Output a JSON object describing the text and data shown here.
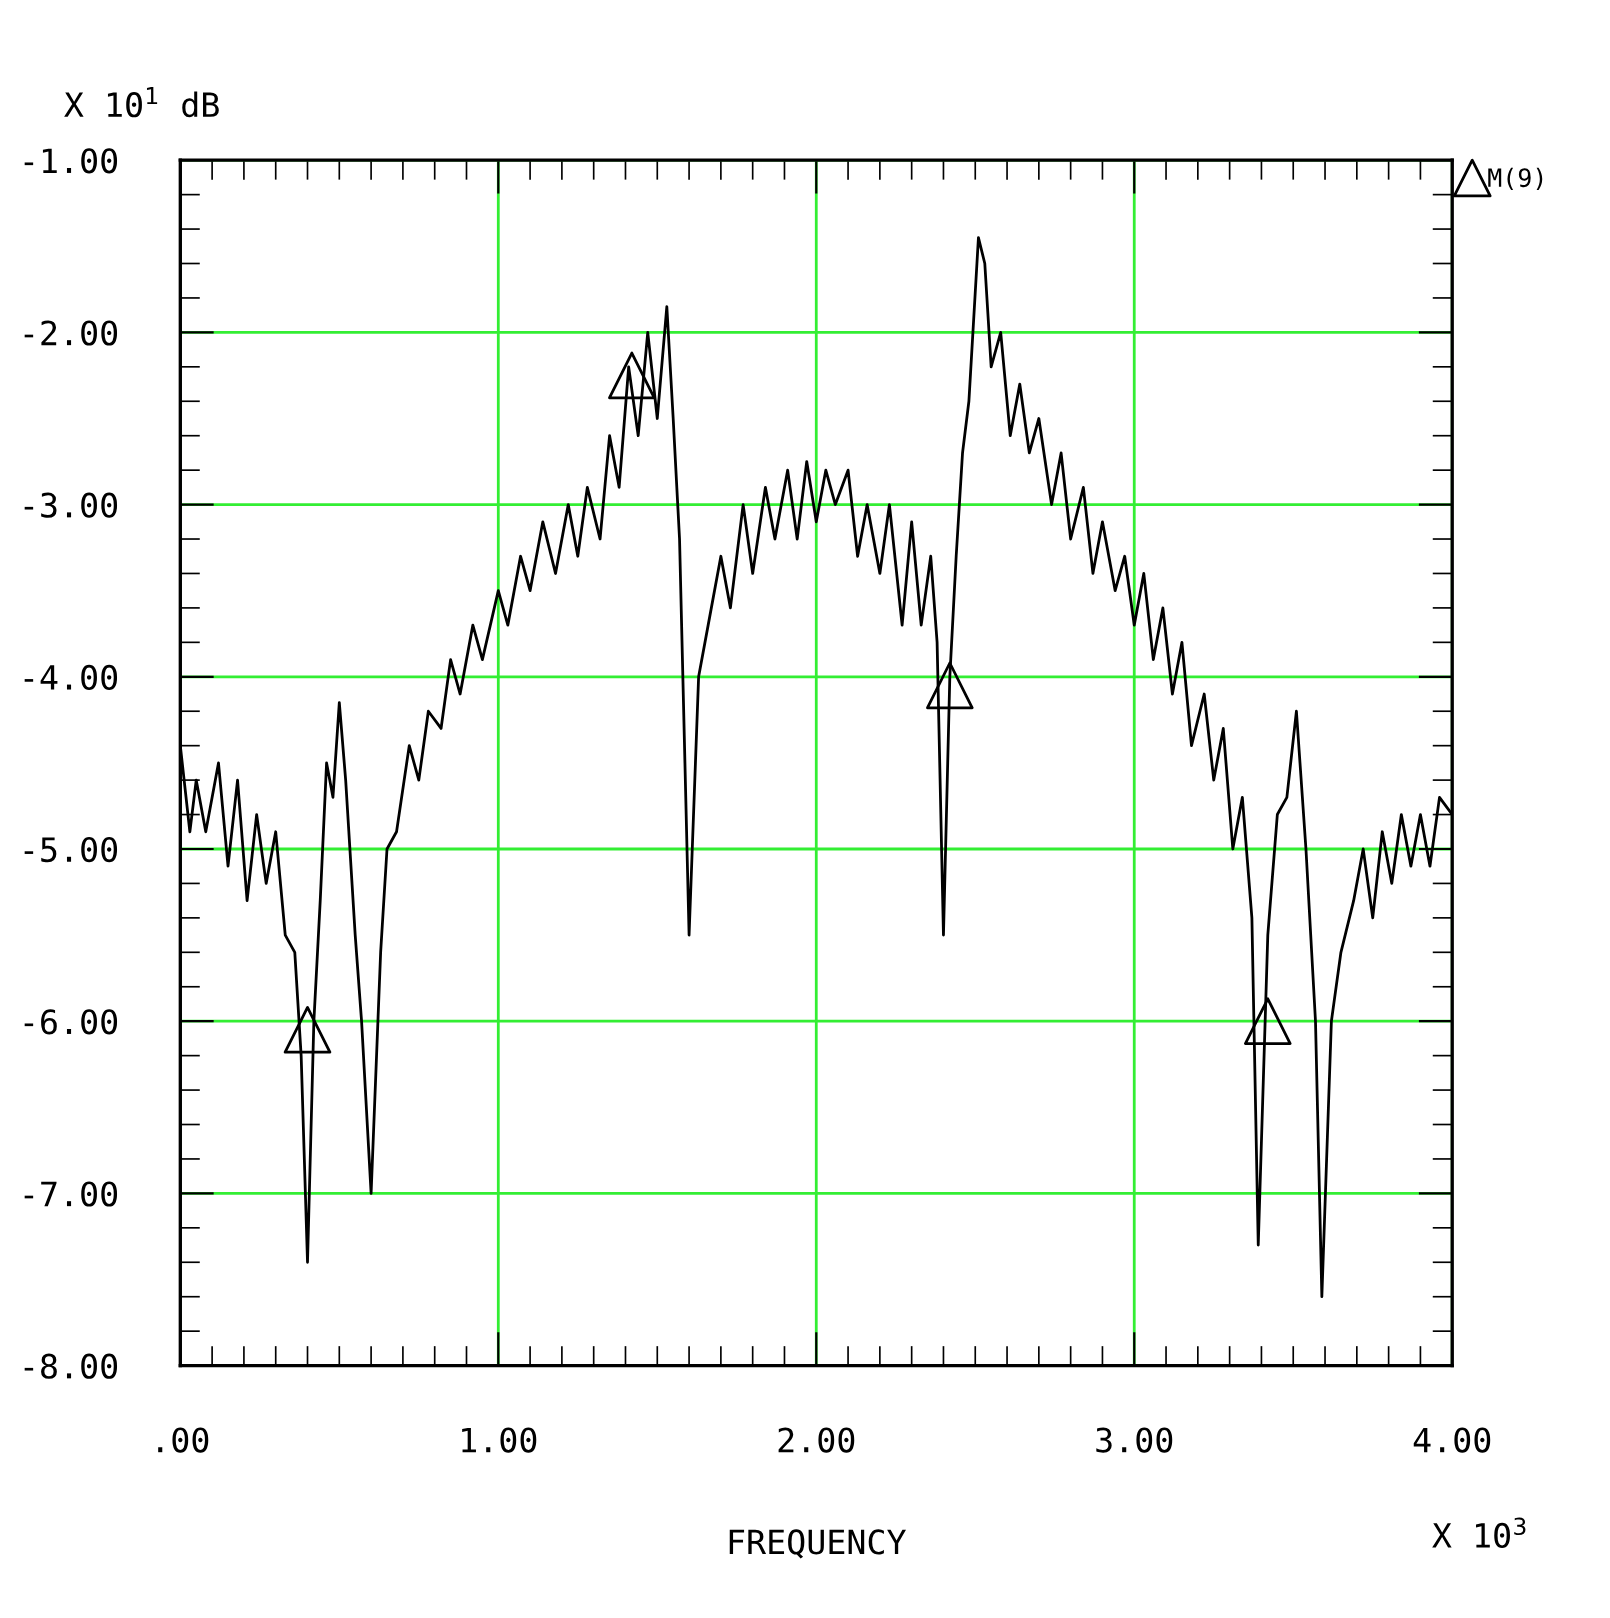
{
  "chart_data": {
    "type": "line",
    "xlabel": "FREQUENCY",
    "ylabel": "X 10$^{1}$ dB",
    "annotations": [
      "X 10$^{3}$"
    ],
    "xlim": [
      0,
      4
    ],
    "ylim": [
      -8,
      -1
    ],
    "xticks": [
      {
        "value": 0,
        "label": ".00"
      },
      {
        "value": 1,
        "label": "1.00"
      },
      {
        "value": 2,
        "label": "2.00"
      },
      {
        "value": 3,
        "label": "3.00"
      },
      {
        "value": 4,
        "label": "4.00"
      }
    ],
    "yticks": [
      {
        "value": -1,
        "label": "-1.00"
      },
      {
        "value": -2,
        "label": "-2.00"
      },
      {
        "value": -3,
        "label": "-3.00"
      },
      {
        "value": -4,
        "label": "-4.00"
      },
      {
        "value": -5,
        "label": "-5.00"
      },
      {
        "value": -6,
        "label": "-6.00"
      },
      {
        "value": -7,
        "label": "-7.00"
      },
      {
        "value": -8,
        "label": "-8.00"
      }
    ],
    "grid": true,
    "legend": "top right",
    "line_style": "solid",
    "series": [
      {
        "color": "#000000",
        "marker": "none",
        "x": [
          0,
          0.03,
          0.05,
          0.08,
          0.12,
          0.15,
          0.18,
          0.21,
          0.24,
          0.27,
          0.3,
          0.33,
          0.36,
          0.38,
          0.4,
          0.42,
          0.44,
          0.46,
          0.48,
          0.5,
          0.52,
          0.55,
          0.57,
          0.6,
          0.63,
          0.65,
          0.68,
          0.72,
          0.75,
          0.78,
          0.82,
          0.85,
          0.88,
          0.92,
          0.95,
          1.0,
          1.03,
          1.07,
          1.1,
          1.14,
          1.18,
          1.22,
          1.25,
          1.28,
          1.32,
          1.35,
          1.38,
          1.41,
          1.44,
          1.47,
          1.5,
          1.53,
          1.55,
          1.57,
          1.6,
          1.63,
          1.66,
          1.7,
          1.73,
          1.77,
          1.8,
          1.84,
          1.87,
          1.91,
          1.94,
          1.97,
          2.0,
          2.03,
          2.06,
          2.1,
          2.13,
          2.16,
          2.2,
          2.23,
          2.27,
          2.3,
          2.33,
          2.36,
          2.38,
          2.4,
          2.42,
          2.44,
          2.46,
          2.48,
          2.51,
          2.53,
          2.55,
          2.58,
          2.61,
          2.64,
          2.67,
          2.7,
          2.74,
          2.77,
          2.8,
          2.84,
          2.87,
          2.9,
          2.94,
          2.97,
          3.0,
          3.03,
          3.06,
          3.09,
          3.12,
          3.15,
          3.18,
          3.22,
          3.25,
          3.28,
          3.31,
          3.34,
          3.37,
          3.39,
          3.42,
          3.45,
          3.48,
          3.51,
          3.54,
          3.57,
          3.59,
          3.62,
          3.65,
          3.69,
          3.72,
          3.75,
          3.78,
          3.81,
          3.84,
          3.87,
          3.9,
          3.93,
          3.96,
          4.0
        ],
        "values": [
          -4.4,
          -4.9,
          -4.6,
          -4.9,
          -4.5,
          -5.1,
          -4.6,
          -5.3,
          -4.8,
          -5.2,
          -4.9,
          -5.5,
          -5.6,
          -6.2,
          -7.4,
          -6.0,
          -5.3,
          -4.5,
          -4.7,
          -4.15,
          -4.6,
          -5.5,
          -6.0,
          -7.0,
          -5.6,
          -5.0,
          -4.9,
          -4.4,
          -4.6,
          -4.2,
          -4.3,
          -3.9,
          -4.1,
          -3.7,
          -3.9,
          -3.5,
          -3.7,
          -3.3,
          -3.5,
          -3.1,
          -3.4,
          -3.0,
          -3.3,
          -2.9,
          -3.2,
          -2.6,
          -2.9,
          -2.2,
          -2.6,
          -2.0,
          -2.5,
          -1.85,
          -2.5,
          -3.2,
          -5.5,
          -4.0,
          -3.7,
          -3.3,
          -3.6,
          -3.0,
          -3.4,
          -2.9,
          -3.2,
          -2.8,
          -3.2,
          -2.75,
          -3.1,
          -2.8,
          -3.0,
          -2.8,
          -3.3,
          -3.0,
          -3.4,
          -3.0,
          -3.7,
          -3.1,
          -3.7,
          -3.3,
          -3.8,
          -5.5,
          -4.0,
          -3.3,
          -2.7,
          -2.4,
          -1.45,
          -1.6,
          -2.2,
          -2.0,
          -2.6,
          -2.3,
          -2.7,
          -2.5,
          -3.0,
          -2.7,
          -3.2,
          -2.9,
          -3.4,
          -3.1,
          -3.5,
          -3.3,
          -3.7,
          -3.4,
          -3.9,
          -3.6,
          -4.1,
          -3.8,
          -4.4,
          -4.1,
          -4.6,
          -4.3,
          -5.0,
          -4.7,
          -5.4,
          -7.3,
          -5.5,
          -4.8,
          -4.7,
          -4.2,
          -5.0,
          -6.0,
          -7.6,
          -6.0,
          -5.6,
          -5.3,
          -5.0,
          -5.4,
          -4.9,
          -5.2,
          -4.8,
          -5.1,
          -4.8,
          -5.1,
          -4.7,
          -4.8
        ]
      },
      {
        "type": "scatter",
        "name": "M(9)",
        "color": "#000000",
        "marker": "triangle",
        "x": [
          0.4,
          1.42,
          2.42,
          3.42
        ],
        "values": [
          -6.05,
          -2.25,
          -4.05,
          -6.0
        ]
      }
    ]
  }
}
